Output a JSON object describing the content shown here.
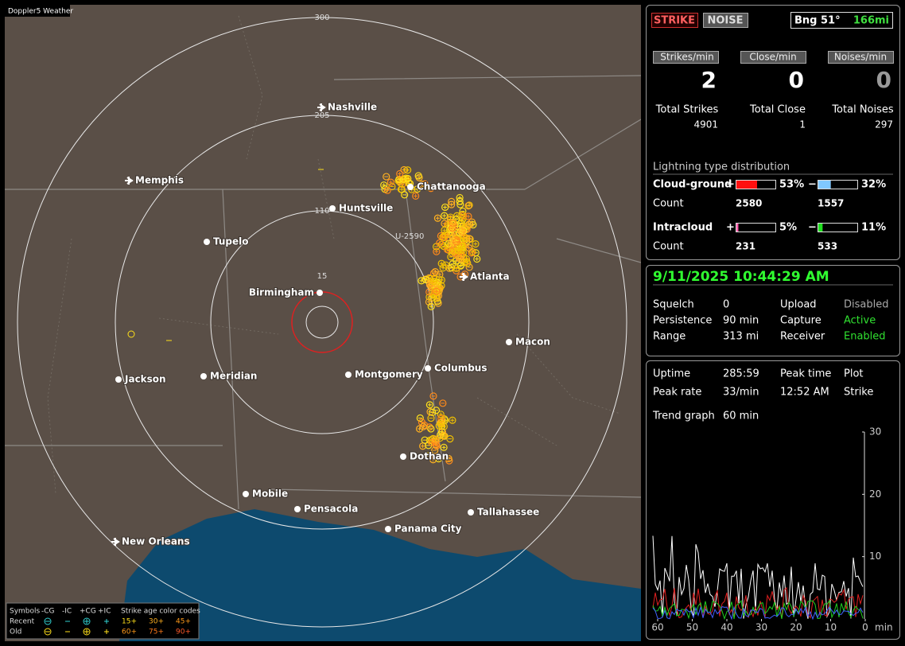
{
  "map": {
    "title": "Doppler5 Weather",
    "range_labels": [
      "300",
      "205",
      "110",
      "15"
    ],
    "marker_label": "U-2590",
    "cities": [
      "Nashville",
      "Memphis",
      "Chattanooga",
      "Huntsville",
      "Tupelo",
      "Birmingham",
      "Atlanta",
      "Macon",
      "Jackson",
      "Meridian",
      "Montgomery",
      "Columbus",
      "Dothan",
      "Mobile",
      "Pensacola",
      "Tallahassee",
      "Panama City",
      "New Orleans"
    ]
  },
  "legend": {
    "symbols_label": "Symbols",
    "headers": [
      "-CG",
      "-IC",
      "+CG",
      "+IC"
    ],
    "age_label": "Strike age color codes",
    "rows": [
      {
        "name": "Recent",
        "ages": [
          "15+",
          "30+",
          "45+"
        ]
      },
      {
        "name": "Old",
        "ages": [
          "60+",
          "75+",
          "90+"
        ]
      }
    ]
  },
  "status": {
    "buttons": [
      "STRIKE",
      "NOISE"
    ],
    "bearing": "Bng 51°",
    "distance": "166mi",
    "rates": [
      {
        "label": "Strikes/min",
        "value": 2,
        "total_label": "Total Strikes",
        "total": 4901
      },
      {
        "label": "Close/min",
        "value": 0,
        "total_label": "Total Close",
        "total": 1
      },
      {
        "label": "Noises/min",
        "value": 0,
        "total_label": "Total Noises",
        "total": 297
      }
    ],
    "distribution": {
      "title": "Lightning type distribution",
      "count_label": "Count",
      "signs": [
        "+",
        "−"
      ],
      "types": [
        {
          "name": "Cloud-ground",
          "plus": {
            "value": 53,
            "label": "53%",
            "count": 2580
          },
          "minus": {
            "value": 32,
            "label": "32%",
            "count": 1557
          }
        },
        {
          "name": "Intracloud",
          "plus": {
            "value": 5,
            "label": "5%",
            "count": 231
          },
          "minus": {
            "value": 11,
            "label": "11%",
            "count": 533
          }
        }
      ]
    }
  },
  "settings": {
    "datetime": "9/11/2025 10:44:29 AM",
    "rows": [
      [
        "Squelch",
        "0",
        "Upload",
        "Disabled"
      ],
      [
        "Persistence",
        "90 min",
        "Capture",
        "Active"
      ],
      [
        "Range",
        "313 mi",
        "Receiver",
        "Enabled"
      ]
    ]
  },
  "stats": {
    "rows": [
      [
        "Uptime",
        "285:59",
        "Peak time",
        "Plot"
      ],
      [
        "Peak rate",
        "33/min",
        "12:52 AM",
        "Strike"
      ]
    ],
    "trend_label": "Trend graph",
    "trend_window": "60 min",
    "trend": {
      "ylim": [
        0,
        30
      ],
      "yticks": [
        10,
        20,
        30
      ],
      "xlim": [
        60,
        0
      ],
      "xticks": [
        60,
        50,
        40,
        30,
        20,
        10,
        0
      ],
      "x_unit": "min"
    }
  }
}
